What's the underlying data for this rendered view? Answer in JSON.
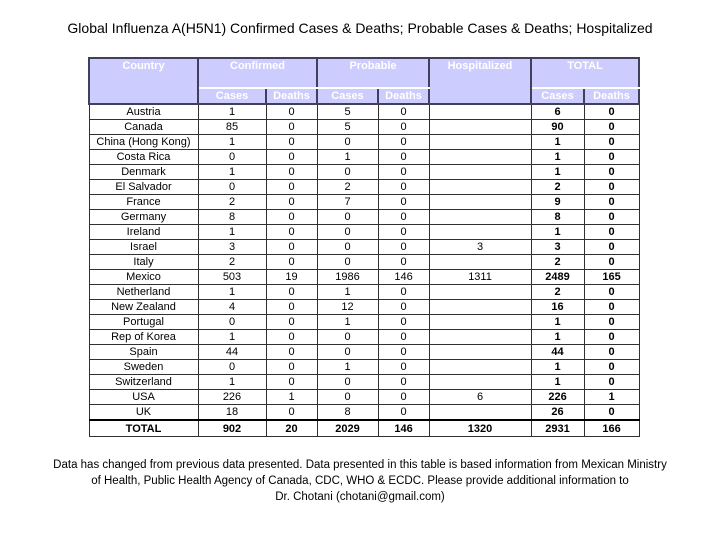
{
  "title": "Global Influenza A(H5N1) Confirmed Cases & Deaths; Probable Cases & Deaths; Hospitalized",
  "colors": {
    "header_fill": "#CCCCFF",
    "header_text": "#FFFFFF",
    "header_border": "#40405A",
    "cell_border": "#303030",
    "body_text": "#000000",
    "background": "#FFFFFF"
  },
  "table": {
    "header": {
      "country": "Country",
      "confirmed": "Confirmed",
      "probable": "Probable",
      "hospitalized": "Hospitalized",
      "total": "TOTAL",
      "cases": "Cases",
      "deaths": "Deaths"
    },
    "columns": [
      "Country",
      "Confirmed Cases",
      "Confirmed Deaths",
      "Probable Cases",
      "Probable Deaths",
      "Hospitalized",
      "Total Cases",
      "Total Deaths"
    ],
    "rows": [
      [
        "Austria",
        "1",
        "0",
        "5",
        "0",
        "",
        "6",
        "0"
      ],
      [
        "Canada",
        "85",
        "0",
        "5",
        "0",
        "",
        "90",
        "0"
      ],
      [
        "China (Hong Kong)",
        "1",
        "0",
        "0",
        "0",
        "",
        "1",
        "0"
      ],
      [
        "Costa Rica",
        "0",
        "0",
        "1",
        "0",
        "",
        "1",
        "0"
      ],
      [
        "Denmark",
        "1",
        "0",
        "0",
        "0",
        "",
        "1",
        "0"
      ],
      [
        "El Salvador",
        "0",
        "0",
        "2",
        "0",
        "",
        "2",
        "0"
      ],
      [
        "France",
        "2",
        "0",
        "7",
        "0",
        "",
        "9",
        "0"
      ],
      [
        "Germany",
        "8",
        "0",
        "0",
        "0",
        "",
        "8",
        "0"
      ],
      [
        "Ireland",
        "1",
        "0",
        "0",
        "0",
        "",
        "1",
        "0"
      ],
      [
        "Israel",
        "3",
        "0",
        "0",
        "0",
        "3",
        "3",
        "0"
      ],
      [
        "Italy",
        "2",
        "0",
        "0",
        "0",
        "",
        "2",
        "0"
      ],
      [
        "Mexico",
        "503",
        "19",
        "1986",
        "146",
        "1311",
        "2489",
        "165"
      ],
      [
        "Netherland",
        "1",
        "0",
        "1",
        "0",
        "",
        "2",
        "0"
      ],
      [
        "New Zealand",
        "4",
        "0",
        "12",
        "0",
        "",
        "16",
        "0"
      ],
      [
        "Portugal",
        "0",
        "0",
        "1",
        "0",
        "",
        "1",
        "0"
      ],
      [
        "Rep of Korea",
        "1",
        "0",
        "0",
        "0",
        "",
        "1",
        "0"
      ],
      [
        "Spain",
        "44",
        "0",
        "0",
        "0",
        "",
        "44",
        "0"
      ],
      [
        "Sweden",
        "0",
        "0",
        "1",
        "0",
        "",
        "1",
        "0"
      ],
      [
        "Switzerland",
        "1",
        "0",
        "0",
        "0",
        "",
        "1",
        "0"
      ],
      [
        "USA",
        "226",
        "1",
        "0",
        "0",
        "6",
        "226",
        "1"
      ],
      [
        "UK",
        "18",
        "0",
        "8",
        "0",
        "",
        "26",
        "0"
      ]
    ],
    "total_row": [
      "TOTAL",
      "902",
      "20",
      "2029",
      "146",
      "1320",
      "2931",
      "166"
    ]
  },
  "footer": {
    "line1": "Data has changed from previous data presented. Data presented in this table is based information from Mexican Ministry",
    "line2": "of Health, Public Health Agency of Canada, CDC, WHO & ECDC. Please provide additional information to",
    "line3": "Dr. Chotani (chotani@gmail.com)"
  }
}
